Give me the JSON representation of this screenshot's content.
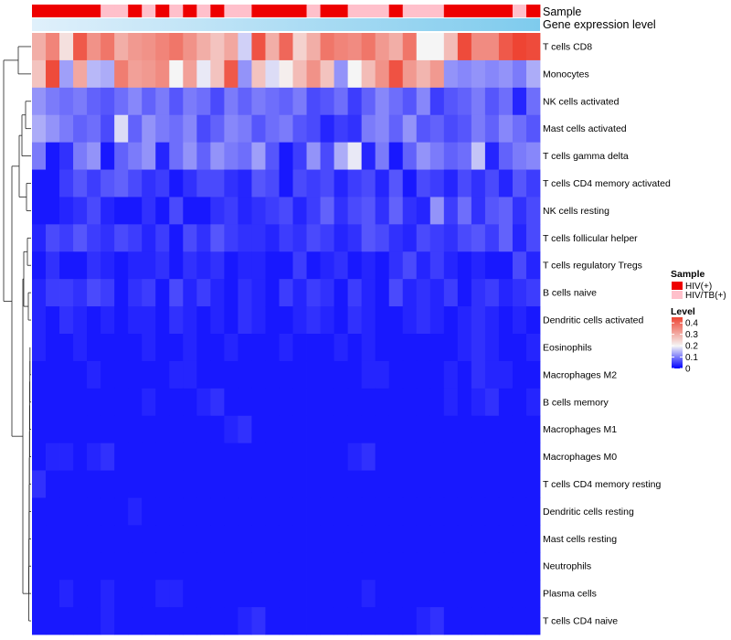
{
  "chart_data": {
    "type": "heatmap",
    "title": "",
    "annotation_tracks": [
      {
        "label": "Sample"
      },
      {
        "label": "Gene expression level"
      }
    ],
    "columns": 37,
    "sample_annotation": [
      "HIV(+)",
      "HIV(+)",
      "HIV(+)",
      "HIV(+)",
      "HIV(+)",
      "HIV/TB(+)",
      "HIV/TB(+)",
      "HIV(+)",
      "HIV/TB(+)",
      "HIV(+)",
      "HIV/TB(+)",
      "HIV(+)",
      "HIV/TB(+)",
      "HIV(+)",
      "HIV/TB(+)",
      "HIV/TB(+)",
      "HIV(+)",
      "HIV(+)",
      "HIV(+)",
      "HIV(+)",
      "HIV/TB(+)",
      "HIV(+)",
      "HIV(+)",
      "HIV/TB(+)",
      "HIV/TB(+)",
      "HIV/TB(+)",
      "HIV(+)",
      "HIV/TB(+)",
      "HIV/TB(+)",
      "HIV/TB(+)",
      "HIV(+)",
      "HIV(+)",
      "HIV(+)",
      "HIV(+)",
      "HIV(+)",
      "HIV/TB(+)",
      "HIV(+)"
    ],
    "rows": [
      {
        "name": "T cells CD8",
        "values": [
          0.3,
          0.36,
          0.23,
          0.42,
          0.34,
          0.38,
          0.3,
          0.33,
          0.34,
          0.36,
          0.38,
          0.34,
          0.3,
          0.27,
          0.31,
          0.17,
          0.43,
          0.3,
          0.4,
          0.25,
          0.3,
          0.38,
          0.36,
          0.35,
          0.38,
          0.33,
          0.3,
          0.38,
          0.2,
          0.2,
          0.28,
          0.44,
          0.35,
          0.35,
          0.42,
          0.45,
          0.44
        ]
      },
      {
        "name": "Monocytes",
        "values": [
          0.27,
          0.44,
          0.13,
          0.31,
          0.15,
          0.14,
          0.37,
          0.32,
          0.33,
          0.35,
          0.2,
          0.32,
          0.19,
          0.27,
          0.42,
          0.12,
          0.27,
          0.18,
          0.21,
          0.28,
          0.34,
          0.27,
          0.12,
          0.2,
          0.28,
          0.34,
          0.43,
          0.33,
          0.29,
          0.33,
          0.12,
          0.11,
          0.12,
          0.11,
          0.12,
          0.1,
          0.14
        ]
      },
      {
        "name": "NK cells activated",
        "values": [
          0.12,
          0.1,
          0.09,
          0.1,
          0.08,
          0.07,
          0.09,
          0.11,
          0.08,
          0.1,
          0.07,
          0.1,
          0.09,
          0.06,
          0.1,
          0.08,
          0.1,
          0.09,
          0.08,
          0.1,
          0.06,
          0.07,
          0.09,
          0.05,
          0.08,
          0.11,
          0.09,
          0.07,
          0.11,
          0.05,
          0.07,
          0.08,
          0.1,
          0.07,
          0.09,
          0.03,
          0.09
        ]
      },
      {
        "name": "Mast cells activated",
        "values": [
          0.14,
          0.12,
          0.1,
          0.08,
          0.09,
          0.06,
          0.18,
          0.08,
          0.12,
          0.1,
          0.09,
          0.11,
          0.06,
          0.08,
          0.11,
          0.1,
          0.07,
          0.09,
          0.1,
          0.07,
          0.06,
          0.03,
          0.05,
          0.04,
          0.1,
          0.11,
          0.08,
          0.12,
          0.07,
          0.08,
          0.06,
          0.07,
          0.1,
          0.08,
          0.11,
          0.09,
          0.07
        ]
      },
      {
        "name": "T cells gamma delta",
        "values": [
          0.1,
          0.02,
          0.04,
          0.1,
          0.12,
          0.02,
          0.08,
          0.1,
          0.12,
          0.03,
          0.09,
          0.12,
          0.08,
          0.12,
          0.1,
          0.09,
          0.13,
          0.07,
          0.02,
          0.05,
          0.12,
          0.06,
          0.14,
          0.19,
          0.03,
          0.1,
          0.02,
          0.08,
          0.12,
          0.1,
          0.08,
          0.09,
          0.16,
          0.03,
          0.08,
          0.1,
          0.11
        ]
      },
      {
        "name": "T cells CD4 memory activated",
        "values": [
          0.02,
          0.02,
          0.05,
          0.07,
          0.05,
          0.07,
          0.08,
          0.06,
          0.04,
          0.05,
          0.02,
          0.04,
          0.06,
          0.06,
          0.04,
          0.03,
          0.07,
          0.06,
          0.02,
          0.06,
          0.05,
          0.06,
          0.03,
          0.05,
          0.06,
          0.03,
          0.07,
          0.02,
          0.06,
          0.05,
          0.03,
          0.06,
          0.04,
          0.06,
          0.03,
          0.07,
          0.05
        ]
      },
      {
        "name": "NK cells resting",
        "values": [
          0.02,
          0.02,
          0.03,
          0.04,
          0.06,
          0.03,
          0.02,
          0.02,
          0.04,
          0.02,
          0.06,
          0.02,
          0.02,
          0.04,
          0.05,
          0.03,
          0.04,
          0.05,
          0.06,
          0.03,
          0.05,
          0.08,
          0.04,
          0.06,
          0.07,
          0.04,
          0.08,
          0.04,
          0.03,
          0.12,
          0.05,
          0.09,
          0.04,
          0.07,
          0.08,
          0.04,
          0.06
        ]
      },
      {
        "name": "T cells follicular helper",
        "values": [
          0.03,
          0.06,
          0.05,
          0.07,
          0.05,
          0.04,
          0.06,
          0.05,
          0.03,
          0.05,
          0.02,
          0.06,
          0.04,
          0.07,
          0.05,
          0.04,
          0.04,
          0.03,
          0.05,
          0.04,
          0.06,
          0.05,
          0.03,
          0.04,
          0.07,
          0.06,
          0.04,
          0.03,
          0.06,
          0.05,
          0.04,
          0.06,
          0.07,
          0.05,
          0.08,
          0.03,
          0.06
        ]
      },
      {
        "name": "T cells regulatory  Tregs",
        "values": [
          0.02,
          0.04,
          0.02,
          0.02,
          0.04,
          0.03,
          0.02,
          0.03,
          0.03,
          0.04,
          0.02,
          0.04,
          0.03,
          0.04,
          0.02,
          0.03,
          0.03,
          0.02,
          0.02,
          0.05,
          0.02,
          0.03,
          0.04,
          0.02,
          0.03,
          0.02,
          0.04,
          0.06,
          0.03,
          0.05,
          0.03,
          0.02,
          0.03,
          0.02,
          0.02,
          0.06,
          0.03
        ]
      },
      {
        "name": "B cells naive",
        "values": [
          0.03,
          0.05,
          0.05,
          0.04,
          0.06,
          0.05,
          0.02,
          0.04,
          0.05,
          0.02,
          0.06,
          0.03,
          0.05,
          0.03,
          0.02,
          0.04,
          0.03,
          0.02,
          0.05,
          0.03,
          0.05,
          0.04,
          0.02,
          0.05,
          0.03,
          0.02,
          0.06,
          0.03,
          0.04,
          0.03,
          0.05,
          0.02,
          0.04,
          0.05,
          0.03,
          0.04,
          0.05
        ]
      },
      {
        "name": "Dendritic cells activated",
        "values": [
          0.03,
          0.02,
          0.04,
          0.03,
          0.02,
          0.03,
          0.02,
          0.03,
          0.03,
          0.02,
          0.04,
          0.03,
          0.02,
          0.03,
          0.02,
          0.04,
          0.03,
          0.02,
          0.02,
          0.03,
          0.04,
          0.03,
          0.02,
          0.04,
          0.03,
          0.02,
          0.02,
          0.03,
          0.04,
          0.03,
          0.02,
          0.03,
          0.04,
          0.03,
          0.02,
          0.03,
          0.02
        ]
      },
      {
        "name": "Eosinophils",
        "values": [
          0.03,
          0.02,
          0.02,
          0.03,
          0.02,
          0.02,
          0.02,
          0.02,
          0.03,
          0.02,
          0.02,
          0.03,
          0.02,
          0.02,
          0.03,
          0.02,
          0.02,
          0.02,
          0.03,
          0.02,
          0.02,
          0.02,
          0.03,
          0.02,
          0.03,
          0.02,
          0.02,
          0.02,
          0.02,
          0.02,
          0.02,
          0.03,
          0.04,
          0.03,
          0.02,
          0.02,
          0.03
        ]
      },
      {
        "name": "Macrophages M2",
        "values": [
          0.02,
          0.02,
          0.02,
          0.02,
          0.03,
          0.02,
          0.02,
          0.02,
          0.02,
          0.02,
          0.03,
          0.03,
          0.02,
          0.02,
          0.02,
          0.02,
          0.02,
          0.02,
          0.02,
          0.02,
          0.02,
          0.02,
          0.02,
          0.02,
          0.03,
          0.03,
          0.02,
          0.02,
          0.02,
          0.02,
          0.03,
          0.02,
          0.04,
          0.03,
          0.03,
          0.02,
          0.02
        ]
      },
      {
        "name": "B cells memory",
        "values": [
          0.02,
          0.02,
          0.02,
          0.02,
          0.02,
          0.02,
          0.02,
          0.02,
          0.03,
          0.02,
          0.02,
          0.02,
          0.03,
          0.04,
          0.02,
          0.02,
          0.02,
          0.02,
          0.02,
          0.02,
          0.02,
          0.02,
          0.02,
          0.02,
          0.02,
          0.02,
          0.02,
          0.02,
          0.02,
          0.02,
          0.03,
          0.02,
          0.03,
          0.04,
          0.02,
          0.02,
          0.03
        ]
      },
      {
        "name": "Macrophages M1",
        "values": [
          0.02,
          0.02,
          0.02,
          0.02,
          0.02,
          0.02,
          0.02,
          0.02,
          0.02,
          0.02,
          0.02,
          0.02,
          0.02,
          0.02,
          0.03,
          0.04,
          0.02,
          0.02,
          0.02,
          0.02,
          0.02,
          0.02,
          0.02,
          0.02,
          0.02,
          0.02,
          0.02,
          0.02,
          0.02,
          0.02,
          0.02,
          0.02,
          0.02,
          0.02,
          0.02,
          0.02,
          0.02
        ]
      },
      {
        "name": "Macrophages M0",
        "values": [
          0.02,
          0.03,
          0.03,
          0.02,
          0.03,
          0.04,
          0.02,
          0.02,
          0.02,
          0.02,
          0.02,
          0.02,
          0.02,
          0.02,
          0.02,
          0.02,
          0.02,
          0.02,
          0.02,
          0.02,
          0.02,
          0.02,
          0.02,
          0.03,
          0.04,
          0.02,
          0.02,
          0.02,
          0.02,
          0.02,
          0.02,
          0.02,
          0.02,
          0.02,
          0.02,
          0.02,
          0.02
        ]
      },
      {
        "name": "T cells CD4 memory resting",
        "values": [
          0.04,
          0.02,
          0.02,
          0.02,
          0.02,
          0.02,
          0.02,
          0.02,
          0.02,
          0.02,
          0.02,
          0.02,
          0.02,
          0.02,
          0.02,
          0.02,
          0.02,
          0.02,
          0.02,
          0.02,
          0.02,
          0.02,
          0.02,
          0.02,
          0.02,
          0.02,
          0.02,
          0.02,
          0.02,
          0.02,
          0.02,
          0.02,
          0.02,
          0.02,
          0.02,
          0.02,
          0.02
        ]
      },
      {
        "name": "Dendritic cells resting",
        "values": [
          0.02,
          0.02,
          0.02,
          0.02,
          0.02,
          0.02,
          0.02,
          0.03,
          0.02,
          0.02,
          0.02,
          0.02,
          0.02,
          0.02,
          0.02,
          0.02,
          0.02,
          0.02,
          0.02,
          0.02,
          0.02,
          0.02,
          0.02,
          0.02,
          0.02,
          0.02,
          0.02,
          0.02,
          0.02,
          0.02,
          0.02,
          0.02,
          0.02,
          0.02,
          0.02,
          0.02,
          0.02
        ]
      },
      {
        "name": "Mast cells resting",
        "values": [
          0.02,
          0.02,
          0.02,
          0.02,
          0.02,
          0.02,
          0.02,
          0.02,
          0.02,
          0.02,
          0.02,
          0.02,
          0.02,
          0.02,
          0.02,
          0.02,
          0.02,
          0.02,
          0.02,
          0.02,
          0.02,
          0.02,
          0.02,
          0.02,
          0.02,
          0.02,
          0.02,
          0.02,
          0.02,
          0.02,
          0.02,
          0.02,
          0.02,
          0.02,
          0.02,
          0.02,
          0.02
        ]
      },
      {
        "name": "Neutrophils",
        "values": [
          0.02,
          0.02,
          0.02,
          0.02,
          0.02,
          0.02,
          0.02,
          0.02,
          0.02,
          0.02,
          0.02,
          0.02,
          0.02,
          0.02,
          0.02,
          0.02,
          0.02,
          0.02,
          0.02,
          0.02,
          0.02,
          0.02,
          0.02,
          0.02,
          0.02,
          0.02,
          0.02,
          0.02,
          0.02,
          0.02,
          0.02,
          0.02,
          0.02,
          0.02,
          0.02,
          0.02,
          0.02
        ]
      },
      {
        "name": "Plasma cells",
        "values": [
          0.02,
          0.02,
          0.03,
          0.02,
          0.02,
          0.03,
          0.02,
          0.02,
          0.02,
          0.03,
          0.03,
          0.02,
          0.02,
          0.02,
          0.02,
          0.02,
          0.02,
          0.02,
          0.02,
          0.02,
          0.02,
          0.02,
          0.02,
          0.02,
          0.03,
          0.02,
          0.02,
          0.02,
          0.02,
          0.02,
          0.02,
          0.02,
          0.02,
          0.02,
          0.02,
          0.02,
          0.02
        ]
      },
      {
        "name": "T cells CD4 naive",
        "values": [
          0.02,
          0.02,
          0.02,
          0.02,
          0.02,
          0.03,
          0.02,
          0.02,
          0.02,
          0.02,
          0.02,
          0.02,
          0.02,
          0.02,
          0.02,
          0.03,
          0.04,
          0.02,
          0.02,
          0.02,
          0.02,
          0.02,
          0.02,
          0.02,
          0.02,
          0.02,
          0.02,
          0.02,
          0.03,
          0.04,
          0.02,
          0.02,
          0.02,
          0.02,
          0.02,
          0.02,
          0.02
        ]
      }
    ],
    "legend": {
      "sample_title": "Sample",
      "sample_items": [
        {
          "label": "HIV(+)",
          "color": "#ee0000"
        },
        {
          "label": "HIV/TB(+)",
          "color": "#ffc0cb"
        }
      ],
      "level_title": "Level",
      "level_ticks": [
        "0.4",
        "0.3",
        "0.2",
        "0.1",
        "0"
      ],
      "level_range": [
        0,
        0.45
      ],
      "color_low": "#0000ff",
      "color_mid": "#f5f5f5",
      "color_high": "#ee4433",
      "mid_value": 0.2
    },
    "expression_gradient": [
      "#e0f0fb",
      "#7ecbed"
    ]
  }
}
